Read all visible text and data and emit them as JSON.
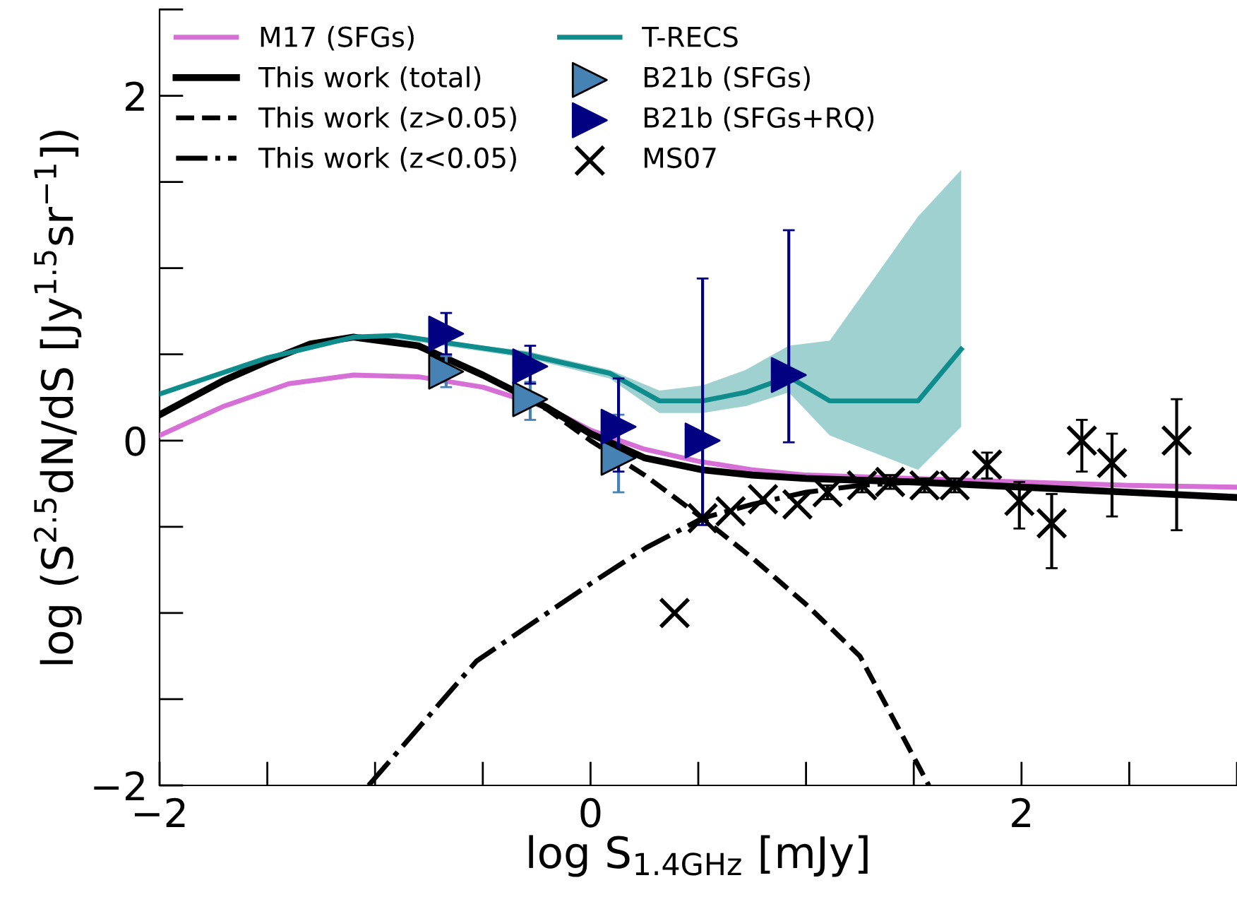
{
  "chart_data": {
    "type": "line",
    "xlabel": "log S$_{1.4GHz}$ [mJy]",
    "ylabel": "log (S$^{2.5}$dN/dS [Jy$^{1.5}$sr$^{−1}$])",
    "xlim": [
      -2,
      3
    ],
    "ylim": [
      -2,
      2.5
    ],
    "xticks": [
      {
        "value": -2,
        "label": "−2"
      },
      0,
      2
    ],
    "yticks": [
      {
        "value": -2,
        "label": "−2"
      },
      0,
      2
    ],
    "grid": false,
    "legend": "top left",
    "series": [
      {
        "name": "M17 (SFGs)",
        "color": "#d670d6",
        "line_style": "solid",
        "x": [
          -2,
          -1.7,
          -1.4,
          -1.1,
          -0.8,
          -0.5,
          -0.2,
          0,
          0.25,
          0.5,
          0.75,
          1,
          1.5,
          2,
          2.5,
          3
        ],
        "values": [
          0.03,
          0.2,
          0.33,
          0.38,
          0.37,
          0.31,
          0.19,
          0.06,
          -0.05,
          -0.12,
          -0.17,
          -0.2,
          -0.22,
          -0.24,
          -0.26,
          -0.27
        ]
      },
      {
        "name": "This work (total)",
        "color": "#000000",
        "line_style": "solid",
        "x": [
          -2,
          -1.7,
          -1.5,
          -1.3,
          -1.1,
          -0.8,
          -0.5,
          -0.2,
          0,
          0.25,
          0.52,
          0.75,
          1,
          1.5,
          2,
          2.5,
          3
        ],
        "values": [
          0.15,
          0.35,
          0.46,
          0.56,
          0.6,
          0.55,
          0.38,
          0.19,
          0.04,
          -0.1,
          -0.17,
          -0.2,
          -0.22,
          -0.24,
          -0.27,
          -0.3,
          -0.33
        ]
      },
      {
        "name": "This work (z>0.05)",
        "color": "#000000",
        "line_style": "dashed",
        "x": [
          -2,
          -1.7,
          -1.5,
          -1.3,
          -1.1,
          -0.8,
          -0.5,
          -0.2,
          0,
          0.25,
          0.52,
          0.75,
          1,
          1.25,
          1.57
        ],
        "values": [
          0.15,
          0.35,
          0.46,
          0.56,
          0.6,
          0.55,
          0.38,
          0.18,
          0.0,
          -0.2,
          -0.45,
          -0.68,
          -0.95,
          -1.25,
          -2
        ]
      },
      {
        "name": "This work (z<0.05)",
        "color": "#000000",
        "line_style": "dashdot",
        "x": [
          -1.03,
          -0.53,
          0,
          0.26,
          0.52,
          0.75,
          1,
          1.25,
          1.5
        ],
        "values": [
          -2,
          -1.28,
          -0.83,
          -0.62,
          -0.45,
          -0.37,
          -0.3,
          -0.26,
          -0.24
        ]
      },
      {
        "name": "T-RECS",
        "color": "#0f8c8c",
        "line_style": "solid",
        "x": [
          -2,
          -1.5,
          -1.1,
          -0.9,
          -0.3,
          0.09,
          0.32,
          0.52,
          0.72,
          0.92,
          1.11,
          1.52,
          1.72
        ],
        "values": [
          0.27,
          0.48,
          0.6,
          0.61,
          0.5,
          0.39,
          0.23,
          0.23,
          0.28,
          0.37,
          0.23,
          0.23,
          0.53
        ],
        "lower": [
          0.26,
          0.47,
          0.59,
          0.59,
          0.48,
          0.36,
          0.16,
          0.16,
          0.2,
          0.28,
          0.03,
          -0.17,
          0.08
        ],
        "upper": [
          0.28,
          0.49,
          0.61,
          0.61,
          0.52,
          0.41,
          0.29,
          0.32,
          0.41,
          0.55,
          0.58,
          1.3,
          1.57
        ]
      },
      {
        "name": "B21b (SFGs)",
        "type": "scatter",
        "marker": "triangle",
        "color": "#4682b4",
        "x": [
          -0.67,
          -0.28,
          0.13
        ],
        "values": [
          0.4,
          0.24,
          -0.1
        ],
        "errors": [
          [
            0.31,
            0.49
          ],
          [
            0.12,
            0.34
          ],
          [
            -0.3,
            0.15
          ]
        ]
      },
      {
        "name": "B21b (SFGs+RQ)",
        "type": "scatter",
        "marker": "triangle",
        "color": "#000080",
        "x": [
          -0.67,
          -0.28,
          0.13,
          0.52,
          0.92
        ],
        "values": [
          0.62,
          0.43,
          0.08,
          0.0,
          0.38
        ],
        "errors": [
          [
            0.5,
            0.74
          ],
          [
            0.33,
            0.55
          ],
          [
            -0.18,
            0.36
          ],
          [
            -0.49,
            0.94
          ],
          [
            -0.01,
            1.22
          ]
        ]
      },
      {
        "name": "MS07",
        "type": "scatter",
        "marker": "cross",
        "color": "#000000",
        "x": [
          0.39,
          0.52,
          0.65,
          0.8,
          0.96,
          1.1,
          1.26,
          1.39,
          1.55,
          1.69,
          1.84,
          1.99,
          2.14,
          2.28,
          2.42,
          2.72
        ],
        "values": [
          -1.0,
          -0.45,
          -0.41,
          -0.34,
          -0.37,
          -0.3,
          -0.26,
          -0.24,
          -0.26,
          -0.26,
          -0.14,
          -0.35,
          -0.48,
          0.0,
          -0.13,
          0.0
        ],
        "errors": [
          null,
          null,
          null,
          null,
          null,
          [
            -0.34,
            -0.26
          ],
          [
            -0.3,
            -0.22
          ],
          [
            -0.28,
            -0.2
          ],
          [
            -0.3,
            -0.22
          ],
          [
            -0.3,
            -0.22
          ],
          [
            -0.22,
            -0.07
          ],
          [
            -0.51,
            -0.24
          ],
          [
            -0.74,
            -0.31
          ],
          [
            -0.18,
            0.12
          ],
          [
            -0.44,
            0.04
          ],
          [
            -0.52,
            0.24
          ]
        ]
      }
    ]
  }
}
